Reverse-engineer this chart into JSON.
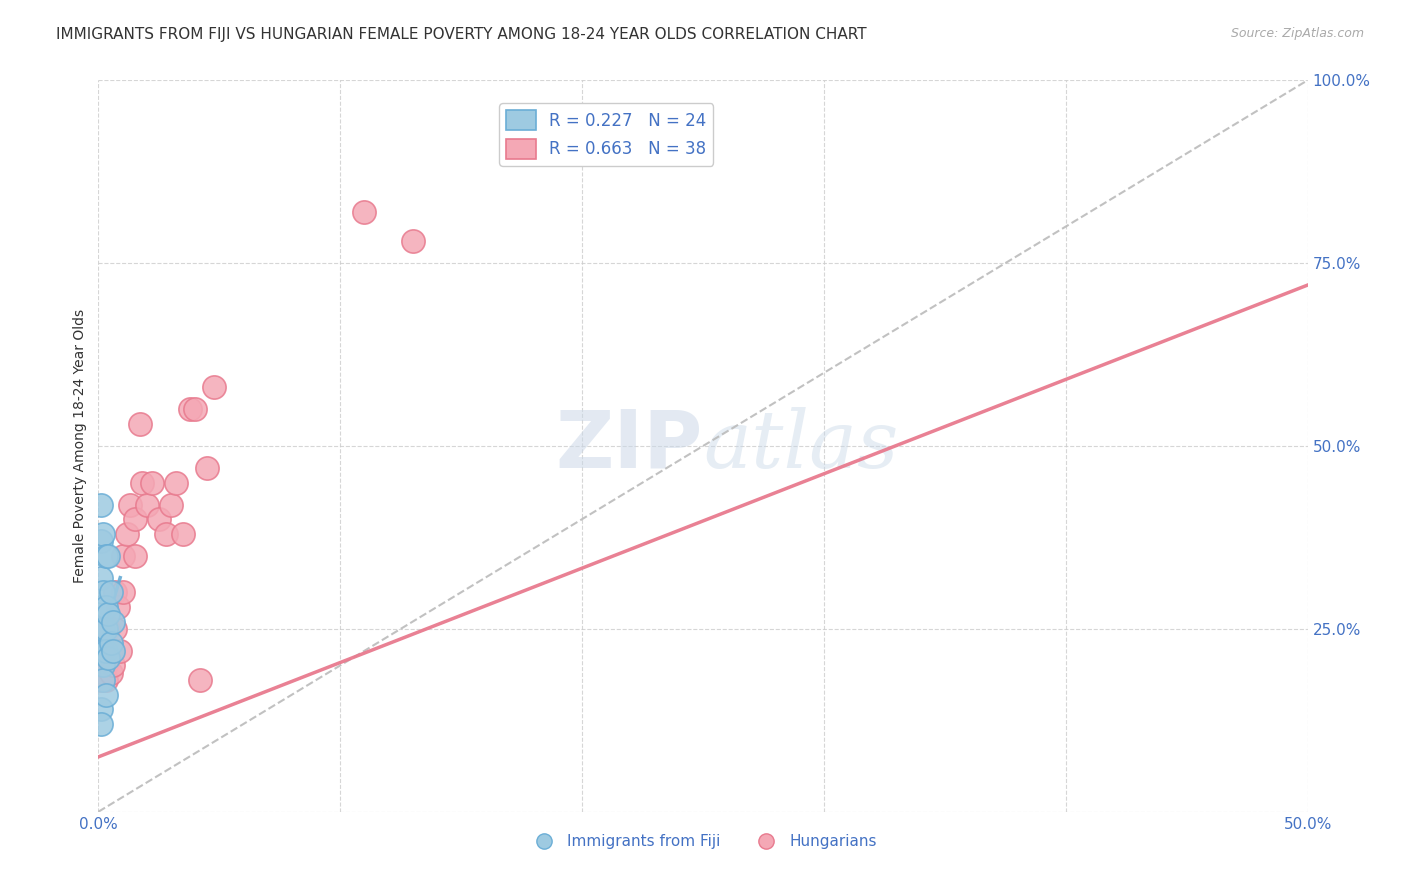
{
  "title": "IMMIGRANTS FROM FIJI VS HUNGARIAN FEMALE POVERTY AMONG 18-24 YEAR OLDS CORRELATION CHART",
  "source": "Source: ZipAtlas.com",
  "ylabel": "Female Poverty Among 18-24 Year Olds",
  "xlim": [
    0.0,
    0.5
  ],
  "ylim": [
    0.0,
    1.0
  ],
  "xticks": [
    0.0,
    0.1,
    0.2,
    0.3,
    0.4,
    0.5
  ],
  "xtick_labels": [
    "0.0%",
    "",
    "",
    "",
    "",
    "50.0%"
  ],
  "yticks": [
    0.0,
    0.25,
    0.5,
    0.75,
    1.0
  ],
  "ytick_labels": [
    "",
    "25.0%",
    "50.0%",
    "75.0%",
    "100.0%"
  ],
  "grid_color": "#cccccc",
  "background_color": "#ffffff",
  "watermark_zip": "ZIP",
  "watermark_atlas": "atlas",
  "fiji_color": "#6baed6",
  "fiji_color_fill": "#9ecae1",
  "fiji_R": 0.227,
  "fiji_N": 24,
  "fiji_scatter_x": [
    0.001,
    0.001,
    0.001,
    0.001,
    0.001,
    0.002,
    0.002,
    0.002,
    0.002,
    0.002,
    0.002,
    0.003,
    0.003,
    0.003,
    0.003,
    0.003,
    0.004,
    0.004,
    0.004,
    0.005,
    0.005,
    0.006,
    0.006,
    0.001
  ],
  "fiji_scatter_y": [
    0.42,
    0.37,
    0.32,
    0.28,
    0.14,
    0.38,
    0.3,
    0.25,
    0.22,
    0.2,
    0.18,
    0.35,
    0.28,
    0.25,
    0.22,
    0.16,
    0.35,
    0.27,
    0.21,
    0.3,
    0.23,
    0.26,
    0.22,
    0.12
  ],
  "fiji_line_x": [
    0.0,
    0.009
  ],
  "fiji_line_y": [
    0.22,
    0.32
  ],
  "hung_color": "#e87a8e",
  "hung_color_fill": "#f4a8b5",
  "hung_R": 0.663,
  "hung_N": 38,
  "hung_scatter_x": [
    0.001,
    0.001,
    0.002,
    0.002,
    0.003,
    0.003,
    0.003,
    0.004,
    0.004,
    0.005,
    0.005,
    0.006,
    0.007,
    0.007,
    0.008,
    0.009,
    0.01,
    0.01,
    0.012,
    0.013,
    0.015,
    0.015,
    0.017,
    0.018,
    0.02,
    0.022,
    0.025,
    0.028,
    0.03,
    0.032,
    0.035,
    0.038,
    0.04,
    0.042,
    0.045,
    0.048,
    0.11,
    0.13
  ],
  "hung_scatter_y": [
    0.2,
    0.18,
    0.22,
    0.19,
    0.2,
    0.18,
    0.22,
    0.25,
    0.22,
    0.22,
    0.19,
    0.2,
    0.3,
    0.25,
    0.28,
    0.22,
    0.35,
    0.3,
    0.38,
    0.42,
    0.4,
    0.35,
    0.53,
    0.45,
    0.42,
    0.45,
    0.4,
    0.38,
    0.42,
    0.45,
    0.38,
    0.55,
    0.55,
    0.18,
    0.47,
    0.58,
    0.82,
    0.78
  ],
  "hung_line_x": [
    0.0,
    0.5
  ],
  "hung_line_y": [
    0.075,
    0.72
  ],
  "diag_line_x": [
    0.0,
    0.5
  ],
  "diag_line_y": [
    0.0,
    1.0
  ],
  "legend_fiji_label": "Immigrants from Fiji",
  "legend_hung_label": "Hungarians",
  "title_fontsize": 11,
  "source_fontsize": 9,
  "axis_label_fontsize": 10,
  "tick_fontsize": 11,
  "legend_fontsize": 12
}
